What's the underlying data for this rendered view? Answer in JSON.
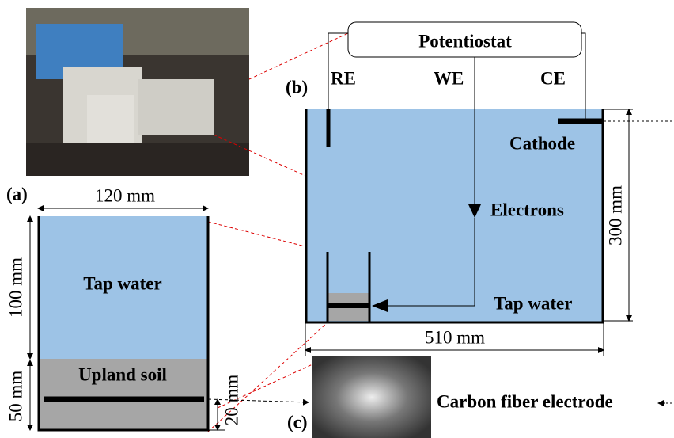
{
  "panel_a": {
    "label": "(a)",
    "width": "120 mm",
    "water_height": "100 mm",
    "soil_height": "50 mm",
    "electrode_depth": "20 mm",
    "water": "Tap water",
    "soil": "Upland soil"
  },
  "panel_b": {
    "label": "(b)",
    "instrument": "Potentiostat",
    "reference": "RE",
    "working": "WE",
    "counter": "CE",
    "cathode": "Cathode",
    "electrons": "Electrons",
    "water": "Tap water",
    "height": "300 mm",
    "width": "510 mm"
  },
  "panel_c": {
    "label": "(c)",
    "caption": "Carbon fiber electrode"
  }
}
